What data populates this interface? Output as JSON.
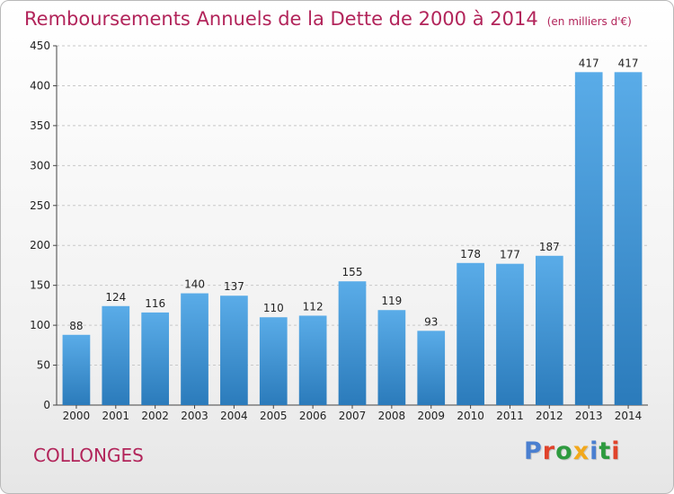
{
  "header": {
    "title": "Remboursements Annuels de la Dette de 2000 à 2014",
    "unit": "(en milliers d'€)"
  },
  "footer": {
    "city": "COLLONGES",
    "brand_letters": [
      "P",
      "r",
      "o",
      "x",
      "i",
      "t",
      "i"
    ],
    "brand_colors": [
      "#4a7fd0",
      "#e0432b",
      "#2e9a3f",
      "#f2a81c",
      "#4a7fd0",
      "#2e9a3f",
      "#e0432b"
    ]
  },
  "colors": {
    "title": "#b2245a",
    "bar_top": "#5aace8",
    "bar_bottom": "#2b7bbb",
    "grid": "#c8c8c8"
  },
  "chart_data": {
    "type": "bar",
    "title": "Remboursements Annuels de la Dette de 2000 à 2014",
    "subtitle": "(en milliers d'€)",
    "xlabel": "",
    "ylabel": "",
    "categories": [
      "2000",
      "2001",
      "2002",
      "2003",
      "2004",
      "2005",
      "2006",
      "2007",
      "2008",
      "2009",
      "2010",
      "2011",
      "2012",
      "2013",
      "2014"
    ],
    "values": [
      88,
      124,
      116,
      140,
      137,
      110,
      112,
      155,
      119,
      93,
      178,
      177,
      187,
      417,
      417
    ],
    "ylim": [
      0,
      450
    ],
    "yticks": [
      0,
      50,
      100,
      150,
      200,
      250,
      300,
      350,
      400,
      450
    ],
    "grid": true,
    "legend": "none"
  }
}
